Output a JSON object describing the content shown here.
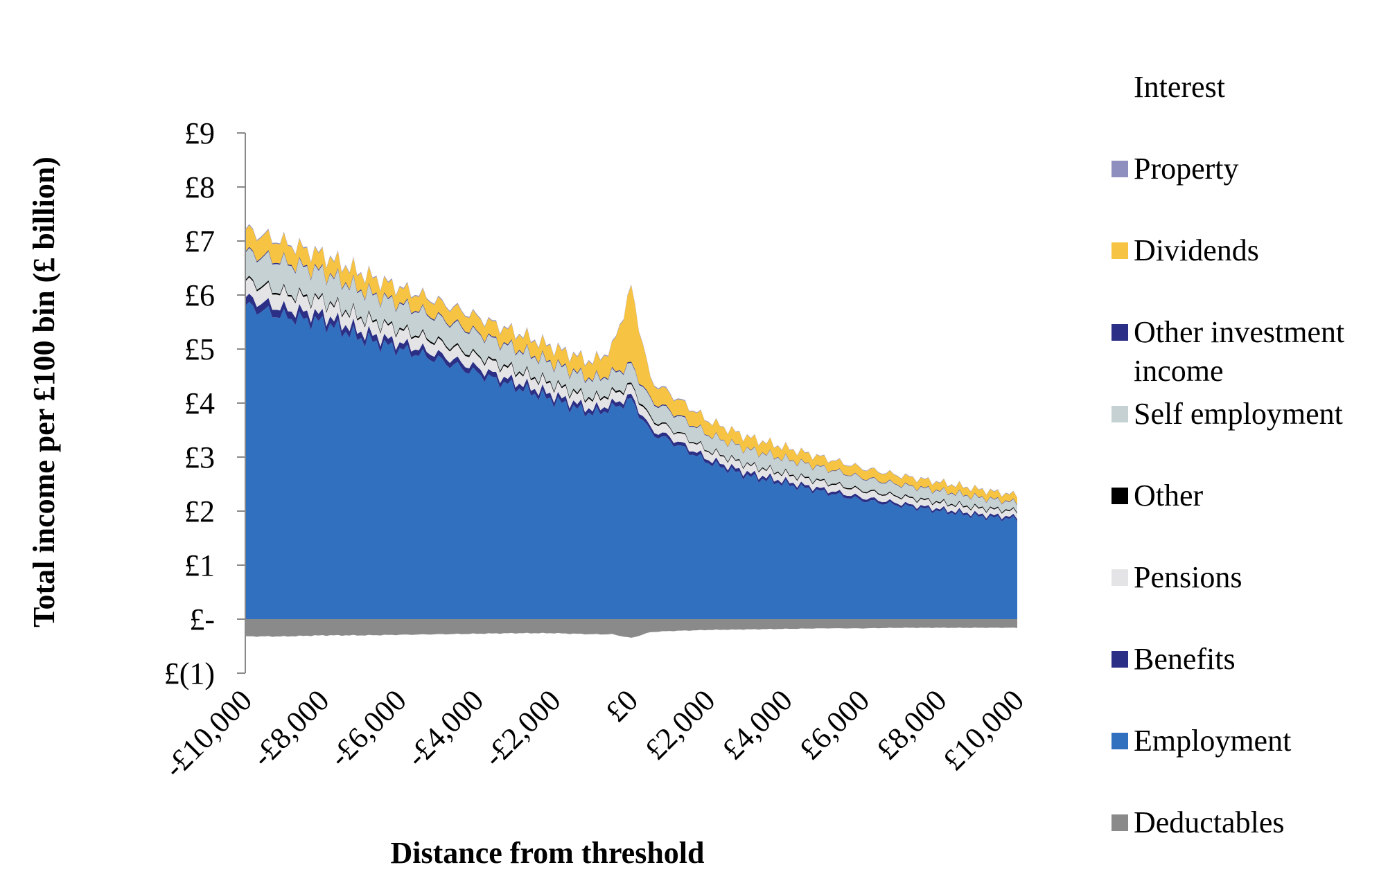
{
  "chart_data": {
    "type": "area",
    "stacked": true,
    "xlabel": "Distance from threshold",
    "ylabel": "Total income per £100 bin (£ billion)",
    "xlim": [
      -10000,
      10000
    ],
    "ylim": [
      -1,
      9
    ],
    "x_ticks": [
      {
        "value": -10000,
        "label": "-£10,000"
      },
      {
        "value": -8000,
        "label": "-£8,000"
      },
      {
        "value": -6000,
        "label": "-£6,000"
      },
      {
        "value": -4000,
        "label": "-£4,000"
      },
      {
        "value": -2000,
        "label": "-£2,000"
      },
      {
        "value": 0,
        "label": "£0"
      },
      {
        "value": 2000,
        "label": "£2,000"
      },
      {
        "value": 4000,
        "label": "£4,000"
      },
      {
        "value": 6000,
        "label": "£6,000"
      },
      {
        "value": 8000,
        "label": "£8,000"
      },
      {
        "value": 10000,
        "label": "£10,000"
      }
    ],
    "y_ticks": [
      {
        "value": 9,
        "label": "£9"
      },
      {
        "value": 8,
        "label": "£8"
      },
      {
        "value": 7,
        "label": "£7"
      },
      {
        "value": 6,
        "label": "£6"
      },
      {
        "value": 5,
        "label": "£5"
      },
      {
        "value": 4,
        "label": "£4"
      },
      {
        "value": 3,
        "label": "£3"
      },
      {
        "value": 2,
        "label": "£2"
      },
      {
        "value": 1,
        "label": "£1"
      },
      {
        "value": 0,
        "label": "£-"
      },
      {
        "value": -1,
        "label": "£(1)"
      }
    ],
    "legend_position": "right",
    "x": [
      -10000,
      -9000,
      -8000,
      -7000,
      -6000,
      -5000,
      -4000,
      -3000,
      -2000,
      -1000,
      -500,
      0,
      500,
      1000,
      2000,
      3000,
      4000,
      5000,
      6000,
      7000,
      8000,
      9000,
      10000
    ],
    "series": [
      {
        "name": "Employment",
        "color": "#3170bf",
        "values": [
          5.8,
          5.6,
          5.5,
          5.2,
          5.0,
          4.8,
          4.55,
          4.3,
          4.05,
          3.8,
          3.9,
          4.05,
          3.45,
          3.3,
          2.9,
          2.65,
          2.5,
          2.35,
          2.2,
          2.1,
          2.0,
          1.9,
          1.85
        ]
      },
      {
        "name": "Benefits",
        "color": "#2b2f86",
        "values": [
          0.15,
          0.14,
          0.13,
          0.12,
          0.11,
          0.1,
          0.1,
          0.09,
          0.09,
          0.08,
          0.08,
          0.08,
          0.07,
          0.07,
          0.06,
          0.06,
          0.05,
          0.05,
          0.05,
          0.04,
          0.04,
          0.04,
          0.04
        ]
      },
      {
        "name": "Pensions",
        "color": "#e4e4e6",
        "values": [
          0.3,
          0.28,
          0.26,
          0.25,
          0.24,
          0.22,
          0.21,
          0.2,
          0.19,
          0.18,
          0.18,
          0.18,
          0.17,
          0.16,
          0.15,
          0.14,
          0.13,
          0.13,
          0.12,
          0.12,
          0.11,
          0.11,
          0.1
        ]
      },
      {
        "name": "Other",
        "color": "#000000",
        "values": [
          0.03,
          0.03,
          0.03,
          0.03,
          0.03,
          0.03,
          0.03,
          0.03,
          0.03,
          0.03,
          0.03,
          0.03,
          0.03,
          0.02,
          0.02,
          0.02,
          0.02,
          0.02,
          0.02,
          0.02,
          0.02,
          0.02,
          0.02
        ]
      },
      {
        "name": "Self employment",
        "color": "#c6d1d4",
        "values": [
          0.5,
          0.55,
          0.5,
          0.48,
          0.45,
          0.42,
          0.4,
          0.38,
          0.36,
          0.34,
          0.34,
          0.36,
          0.32,
          0.3,
          0.28,
          0.27,
          0.26,
          0.24,
          0.22,
          0.2,
          0.2,
          0.18,
          0.14
        ]
      },
      {
        "name": "Other investment income",
        "color": "#2b2f86",
        "values": [
          0.02,
          0.02,
          0.02,
          0.02,
          0.02,
          0.02,
          0.02,
          0.02,
          0.02,
          0.02,
          0.02,
          0.02,
          0.02,
          0.02,
          0.01,
          0.01,
          0.01,
          0.01,
          0.01,
          0.01,
          0.01,
          0.01,
          0.01
        ]
      },
      {
        "name": "Dividends",
        "color": "#f6c342",
        "values": [
          0.4,
          0.35,
          0.3,
          0.3,
          0.28,
          0.28,
          0.28,
          0.28,
          0.28,
          0.3,
          0.45,
          1.4,
          0.35,
          0.3,
          0.25,
          0.22,
          0.2,
          0.18,
          0.17,
          0.16,
          0.15,
          0.14,
          0.13
        ]
      },
      {
        "name": "Property",
        "color": "#8e8fbf",
        "values": [
          0.02,
          0.02,
          0.02,
          0.02,
          0.02,
          0.02,
          0.02,
          0.02,
          0.02,
          0.02,
          0.02,
          0.02,
          0.02,
          0.02,
          0.01,
          0.01,
          0.01,
          0.01,
          0.01,
          0.01,
          0.01,
          0.01,
          0.01
        ]
      },
      {
        "name": "Interest",
        "color": "#ffffff",
        "values": [
          0.02,
          0.02,
          0.02,
          0.02,
          0.02,
          0.02,
          0.02,
          0.02,
          0.02,
          0.02,
          0.02,
          0.02,
          0.02,
          0.02,
          0.01,
          0.01,
          0.01,
          0.01,
          0.01,
          0.01,
          0.01,
          0.01,
          0.01
        ]
      },
      {
        "name": "Deductables",
        "color": "#8a8a8a",
        "negative": true,
        "values": [
          -0.32,
          -0.32,
          -0.3,
          -0.3,
          -0.29,
          -0.28,
          -0.27,
          -0.26,
          -0.26,
          -0.28,
          -0.28,
          -0.35,
          -0.24,
          -0.22,
          -0.2,
          -0.19,
          -0.18,
          -0.17,
          -0.17,
          -0.16,
          -0.16,
          -0.16,
          -0.16
        ]
      }
    ],
    "legend": [
      {
        "name": "Interest",
        "color": "#ffffff"
      },
      {
        "name": "Property",
        "color": "#8e8fbf"
      },
      {
        "name": "Dividends",
        "color": "#f6c342"
      },
      {
        "name": "Other investment income",
        "color": "#2b2f86",
        "lines": [
          "Other investment",
          "income"
        ]
      },
      {
        "name": "Self employment",
        "color": "#c6d1d4"
      },
      {
        "name": "Other",
        "color": "#000000"
      },
      {
        "name": "Pensions",
        "color": "#e4e4e6"
      },
      {
        "name": "Benefits",
        "color": "#2b2f86"
      },
      {
        "name": "Employment",
        "color": "#3170bf"
      },
      {
        "name": "Deductables",
        "color": "#8a8a8a"
      }
    ]
  }
}
